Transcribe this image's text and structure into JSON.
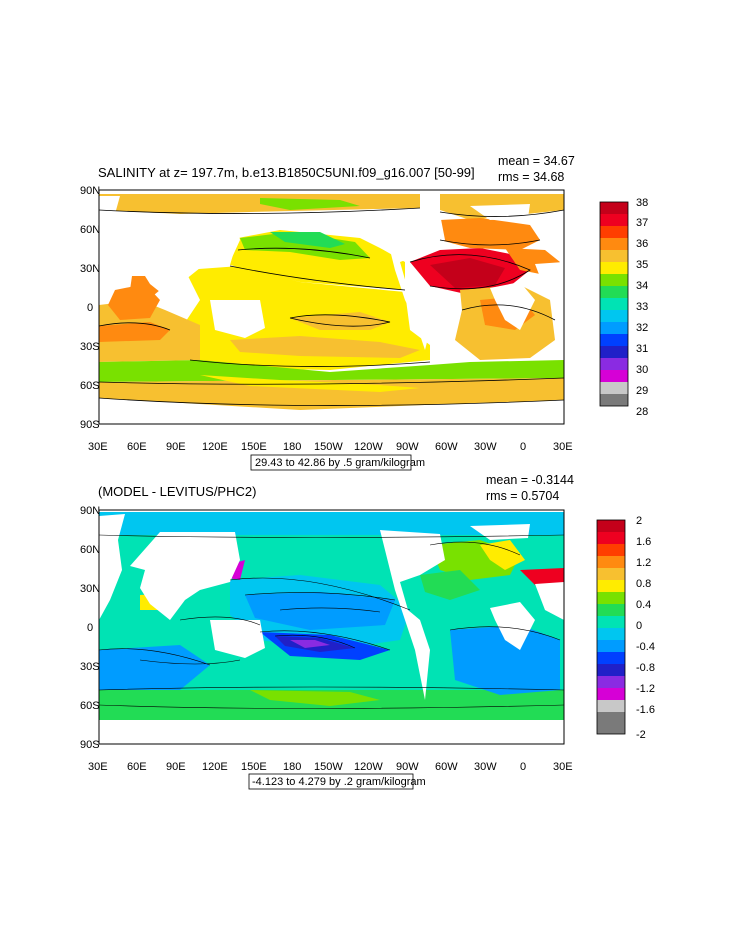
{
  "colors": {
    "ocean_default": "#ffffff",
    "land": "#ffffff",
    "frame": "#000000"
  },
  "panels": [
    {
      "title": "SALINITY at z= 197.7m, b.e13.B1850C5UNI.f09_g16.007 [50-99]",
      "stats": {
        "mean": "mean = 34.67",
        "rms": "rms = 34.68"
      },
      "contour_info": "29.43 to 42.86 by .5 gram/kilogram",
      "colorbar": {
        "labels": [
          "38",
          "37",
          "36",
          "35",
          "34",
          "33",
          "32",
          "31",
          "30",
          "29",
          "28"
        ],
        "colors": [
          "#c4001a",
          "#ee0020",
          "#ff3e00",
          "#ff8a10",
          "#f7c030",
          "#ffec00",
          "#79e100",
          "#22dc55",
          "#00e3b4",
          "#00c6f0",
          "#009cff",
          "#0040ff",
          "#2020c8",
          "#8a2be2",
          "#d600d6",
          "#c8c8c8",
          "#7a7a7a"
        ]
      },
      "legend_order": "top-to-bottom"
    },
    {
      "title": "(MODEL - LEVITUS/PHC2)",
      "stats": {
        "mean": "mean = -0.3144",
        "rms": "rms = 0.5704"
      },
      "contour_info": "-4.123 to 4.279 by .2 gram/kilogram",
      "colorbar": {
        "labels": [
          "2",
          "1.6",
          "1.2",
          "0.8",
          "0.4",
          "0",
          "-0.4",
          "-0.8",
          "-1.2",
          "-1.6",
          "-2"
        ],
        "colors": [
          "#c4001a",
          "#ee0020",
          "#ff3e00",
          "#ff8a10",
          "#f7c030",
          "#ffec00",
          "#79e100",
          "#22dc55",
          "#00e3b4",
          "#00c6f0",
          "#009cff",
          "#0040ff",
          "#2020c8",
          "#8a2be2",
          "#d600d6",
          "#c8c8c8",
          "#7a7a7a"
        ]
      },
      "legend_order": "top-to-bottom"
    }
  ],
  "axes": {
    "x_ticks": [
      "30E",
      "60E",
      "90E",
      "120E",
      "150E",
      "180",
      "150W",
      "120W",
      "90W",
      "60W",
      "30W",
      "0",
      "30E"
    ],
    "y_ticks": [
      "90N",
      "60N",
      "30N",
      "0",
      "30S",
      "60S",
      "90S"
    ]
  }
}
